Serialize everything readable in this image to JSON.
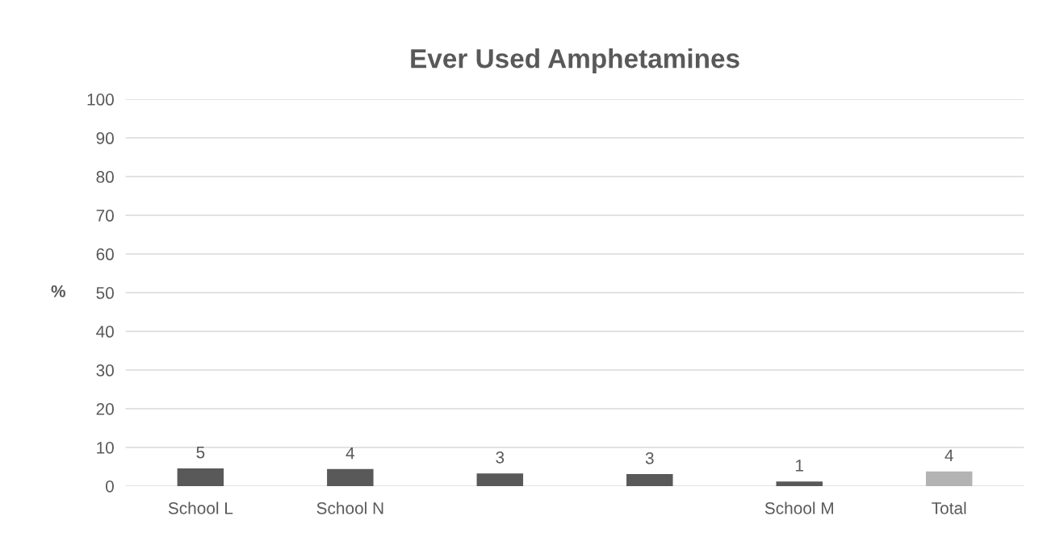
{
  "chart_data": {
    "type": "bar",
    "title": "Ever Used Amphetamines",
    "ylabel": "%",
    "categories": [
      "School L",
      "School N",
      null,
      null,
      "School M",
      "Total"
    ],
    "values": [
      4.6,
      4.4,
      3.3,
      3.1,
      1.2,
      3.8
    ],
    "value_labels": [
      "5",
      "4",
      "3",
      "3",
      "1",
      "4"
    ],
    "colors": [
      "#595959",
      "#595959",
      "#595959",
      "#595959",
      "#595959",
      "#b3b3b3"
    ],
    "ylim": [
      0,
      100
    ],
    "yticks": [
      0,
      10,
      20,
      30,
      40,
      50,
      60,
      70,
      80,
      90,
      100
    ],
    "grid": "y",
    "legend": false
  }
}
